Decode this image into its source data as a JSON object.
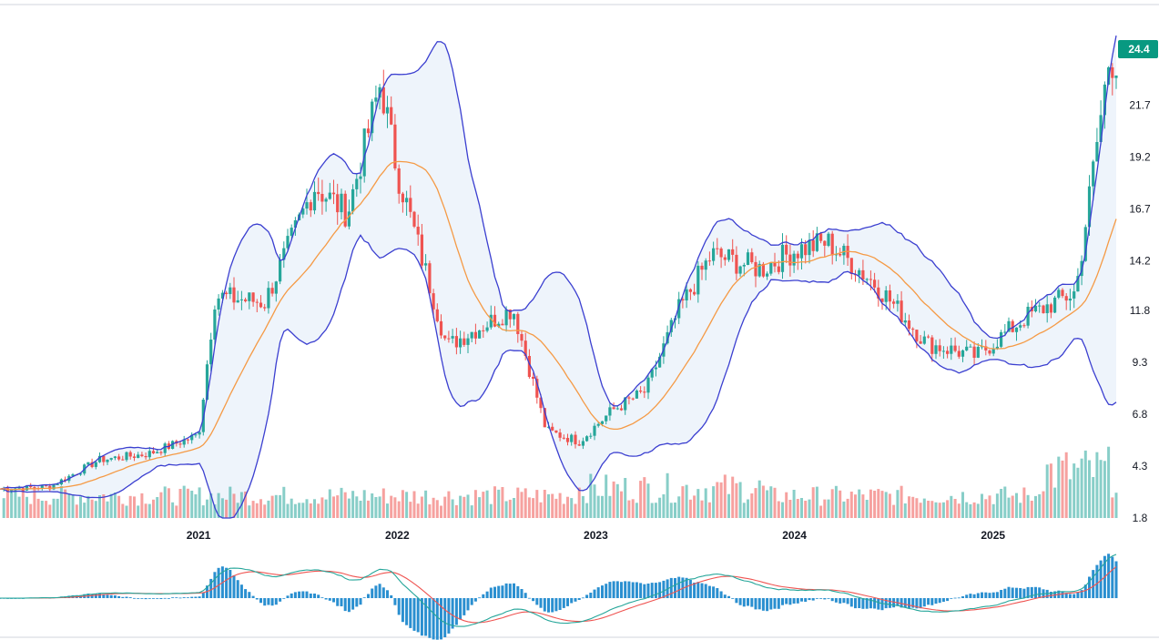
{
  "chart_data": {
    "type": "candlestick",
    "y_ticks": [
      "24.4",
      "21.7",
      "19.2",
      "16.7",
      "14.2",
      "11.8",
      "9.3",
      "6.8",
      "4.3",
      "1.8"
    ],
    "x_ticks": [
      "2021",
      "2022",
      "2023",
      "2024",
      "2025"
    ],
    "last_price": "24.4",
    "ylim": [
      1.8,
      24.4
    ],
    "indicators": [
      "Bollinger Bands (upper, middle, lower)",
      "Volume",
      "MACD"
    ],
    "colors": {
      "up": "#26a69a",
      "down": "#ef5350",
      "band": "#3b3fd0",
      "basis": "#f59a45",
      "band_fill": "#eef4fb",
      "macd": "#26a69a",
      "signal": "#ef5350",
      "hist": "#2a8fd0",
      "price_label_bg": "#089981"
    },
    "price_close_points": [
      [
        "2020-01",
        3.2
      ],
      [
        "2020-04",
        3.3
      ],
      [
        "2020-07",
        4.6
      ],
      [
        "2020-10",
        4.9
      ],
      [
        "2021-01",
        5.8
      ],
      [
        "2021-02",
        12.5
      ],
      [
        "2021-05",
        12.2
      ],
      [
        "2021-08",
        17.8
      ],
      [
        "2021-10",
        16.5
      ],
      [
        "2021-12",
        22.8
      ],
      [
        "2022-01",
        18.5
      ],
      [
        "2022-04",
        10.1
      ],
      [
        "2022-06",
        11.0
      ],
      [
        "2022-08",
        11.9
      ],
      [
        "2022-10",
        6.0
      ],
      [
        "2022-12",
        5.5
      ],
      [
        "2023-02",
        7.0
      ],
      [
        "2023-04",
        7.9
      ],
      [
        "2023-06",
        11.8
      ],
      [
        "2023-08",
        14.5
      ],
      [
        "2023-11",
        13.8
      ],
      [
        "2024-01",
        14.7
      ],
      [
        "2024-03",
        15.1
      ],
      [
        "2024-06",
        13.0
      ],
      [
        "2024-09",
        10.2
      ],
      [
        "2024-12",
        9.6
      ],
      [
        "2025-03",
        11.5
      ],
      [
        "2025-06",
        12.7
      ],
      [
        "2025-08",
        23.9
      ]
    ]
  }
}
